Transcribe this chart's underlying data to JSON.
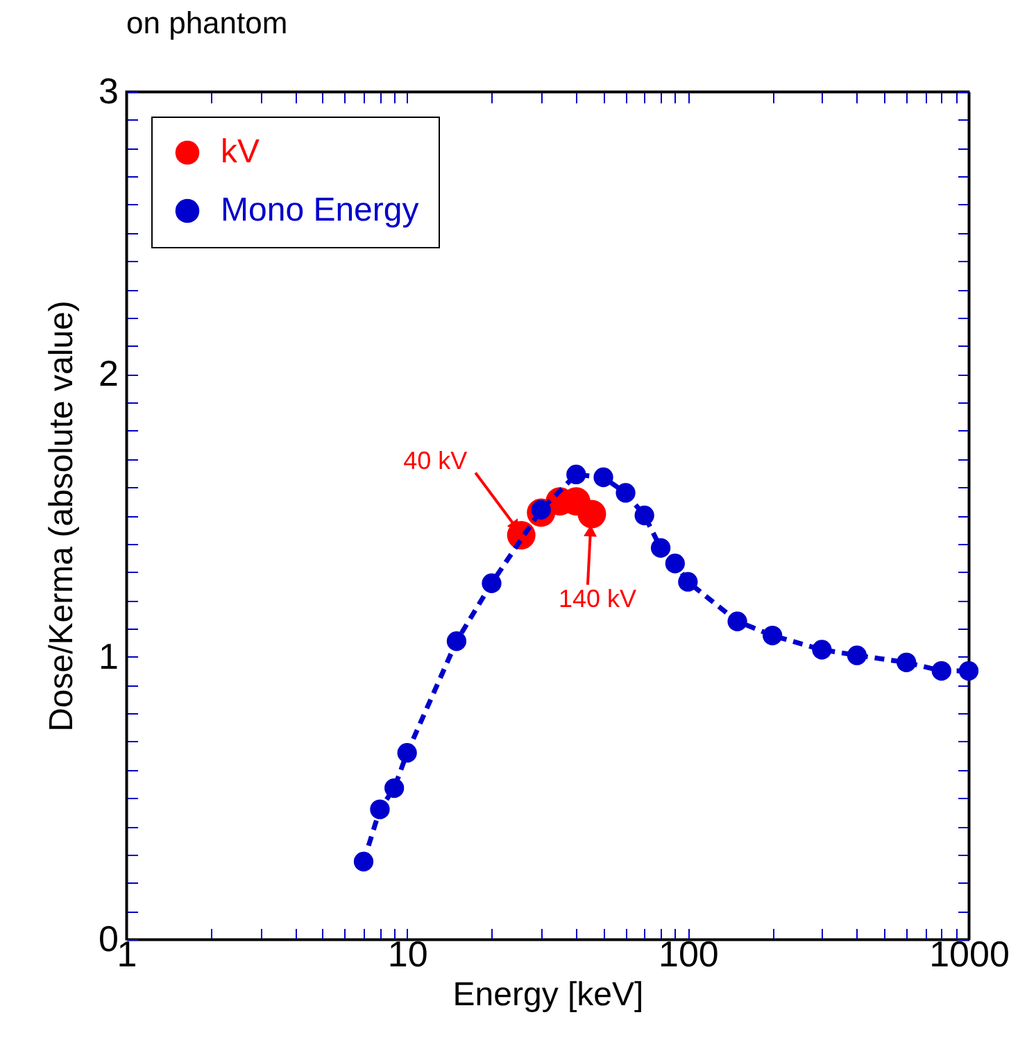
{
  "chart_data": {
    "type": "line",
    "title": "on phantom",
    "xlabel": "Energy [keV]",
    "ylabel": "Dose/Kerma (absolute value)",
    "log": "x",
    "xlim": [
      1,
      1000
    ],
    "xticks": [
      1,
      {
        "value": 2,
        "label": null
      },
      {
        "value": 3,
        "label": null
      },
      {
        "value": 4,
        "label": null
      },
      {
        "value": 5,
        "label": null
      },
      {
        "value": 6,
        "label": null
      },
      {
        "value": 7,
        "label": null
      },
      {
        "value": 8,
        "label": null
      },
      {
        "value": 9,
        "label": null
      },
      10,
      {
        "value": 20,
        "label": null
      },
      {
        "value": 30,
        "label": null
      },
      {
        "value": 40,
        "label": null
      },
      {
        "value": 50,
        "label": null
      },
      {
        "value": 60,
        "label": null
      },
      {
        "value": 70,
        "label": null
      },
      {
        "value": 80,
        "label": null
      },
      {
        "value": 90,
        "label": null
      },
      100,
      {
        "value": 200,
        "label": null
      },
      {
        "value": 300,
        "label": null
      },
      {
        "value": 400,
        "label": null
      },
      {
        "value": 500,
        "label": null
      },
      {
        "value": 600,
        "label": null
      },
      {
        "value": 700,
        "label": null
      },
      {
        "value": 800,
        "label": null
      },
      {
        "value": 900,
        "label": null
      },
      1000
    ],
    "ylim": [
      0,
      3
    ],
    "yticks": [
      0,
      {
        "value": 0.1,
        "label": null
      },
      {
        "value": 0.2,
        "label": null
      },
      {
        "value": 0.3,
        "label": null
      },
      {
        "value": 0.4,
        "label": null
      },
      {
        "value": 0.5,
        "label": null
      },
      {
        "value": 0.6,
        "label": null
      },
      {
        "value": 0.7,
        "label": null
      },
      {
        "value": 0.8,
        "label": null
      },
      {
        "value": 0.9,
        "label": null
      },
      1,
      {
        "value": 1.1,
        "label": null
      },
      {
        "value": 1.2,
        "label": null
      },
      {
        "value": 1.3,
        "label": null
      },
      {
        "value": 1.4,
        "label": null
      },
      {
        "value": 1.5,
        "label": null
      },
      {
        "value": 1.6,
        "label": null
      },
      {
        "value": 1.7,
        "label": null
      },
      {
        "value": 1.8,
        "label": null
      },
      {
        "value": 1.9,
        "label": null
      },
      2,
      {
        "value": 2.1,
        "label": null
      },
      {
        "value": 2.2,
        "label": null
      },
      {
        "value": 2.3,
        "label": null
      },
      {
        "value": 2.4,
        "label": null
      },
      {
        "value": 2.5,
        "label": null
      },
      {
        "value": 2.6,
        "label": null
      },
      {
        "value": 2.7,
        "label": null
      },
      {
        "value": 2.8,
        "label": null
      },
      {
        "value": 2.9,
        "label": null
      },
      3
    ],
    "grid": false,
    "legend": "top left",
    "marker": "circle",
    "series": [
      {
        "name": "kV",
        "type": "scatter",
        "color": "#ff0000",
        "x": [
          25.5,
          30,
          35,
          40,
          45.5
        ],
        "values": [
          1.43,
          1.51,
          1.55,
          1.55,
          1.505
        ]
      },
      {
        "name": "Mono Energy",
        "type": "line",
        "line_style": "dashed",
        "color": "#0000cc",
        "x": [
          7,
          8,
          9,
          10,
          15,
          20,
          30,
          40,
          50,
          60,
          70,
          80,
          90,
          100,
          150,
          200,
          300,
          400,
          600,
          800,
          1000
        ],
        "values": [
          0.275,
          0.46,
          0.535,
          0.66,
          1.055,
          1.26,
          1.52,
          1.645,
          1.635,
          1.58,
          1.5,
          1.385,
          1.33,
          1.265,
          1.125,
          1.075,
          1.025,
          1.005,
          0.98,
          0.95,
          0.95
        ]
      }
    ],
    "annotations": [
      {
        "text": "40 kV",
        "x": 25.5,
        "y": 1.43
      },
      {
        "text": "140 kV",
        "x": 45.5,
        "y": 1.505
      }
    ]
  }
}
